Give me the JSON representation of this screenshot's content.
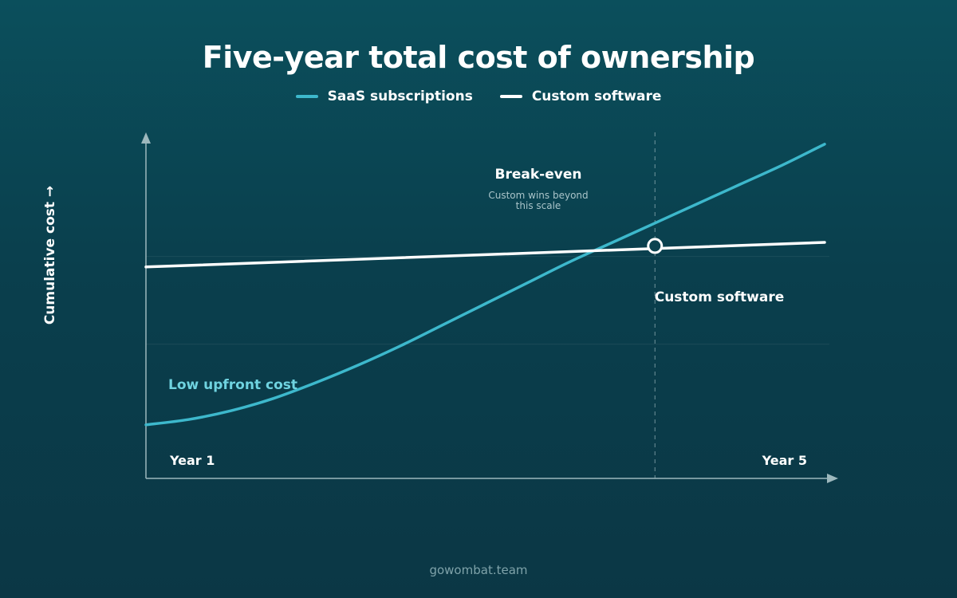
{
  "chart_data": {
    "type": "line",
    "title": "Five-year total cost of ownership",
    "xlabel": "",
    "ylabel": "Cumulative cost →",
    "x": [
      1,
      2,
      3,
      4,
      5
    ],
    "x_tick_labels": [
      "Year 1",
      "Year 5"
    ],
    "xlim": [
      1,
      5
    ],
    "ylim": [
      0,
      100
    ],
    "grid": true,
    "legend": "top-center",
    "series": [
      {
        "name": "SaaS subscriptions",
        "color": "#3db8cc",
        "x": [
          1,
          1.25,
          1.5,
          1.75,
          2,
          2.25,
          2.5,
          2.75,
          3,
          3.25,
          3.5,
          3.75,
          4,
          4.25,
          4.5,
          4.75,
          5
        ],
        "y": [
          13,
          14.5,
          17,
          20.5,
          25,
          30,
          35.5,
          41.5,
          47.5,
          53.5,
          59.5,
          65,
          70.5,
          76,
          81.5,
          87,
          93
        ]
      },
      {
        "name": "Custom software",
        "color": "#ffffff",
        "x": [
          1,
          5
        ],
        "y": [
          58,
          65
        ]
      }
    ],
    "annotations": {
      "break_even": {
        "x": 4.0,
        "y": 64,
        "title": "Break-even",
        "note": [
          "Custom wins beyond",
          "this scale"
        ]
      },
      "low_upfront": {
        "text": "Low upfront cost",
        "x": 1.3,
        "y": 28
      },
      "custom_label": {
        "text": "Custom software",
        "x": 4.55,
        "y": 56
      }
    }
  },
  "footer": "gowombat.team"
}
